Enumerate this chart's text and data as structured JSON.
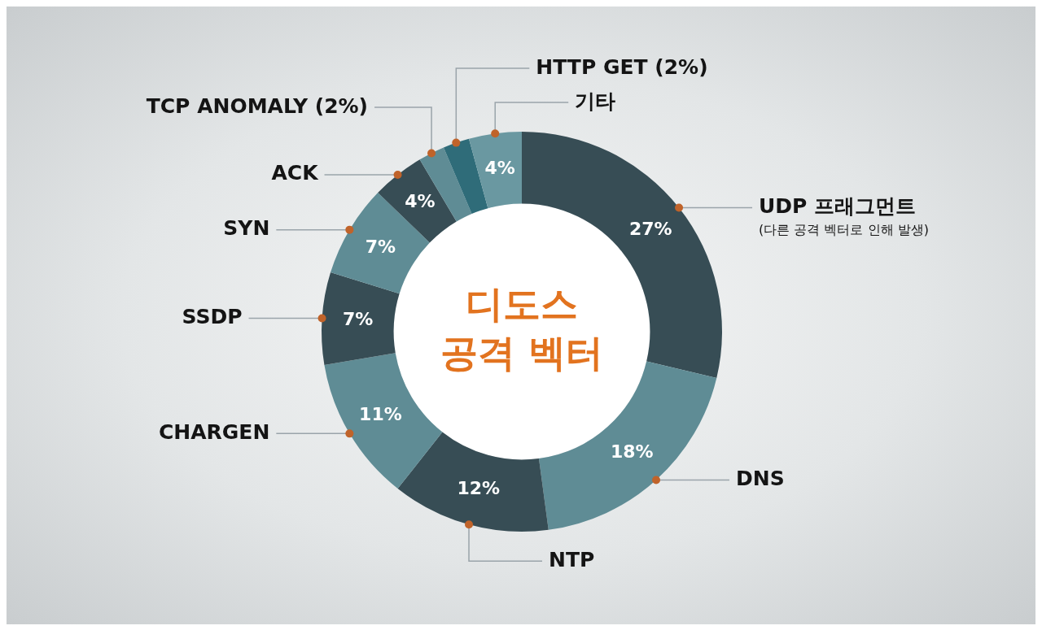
{
  "chart_data": {
    "type": "donut",
    "title": "디도스 공격 벡터",
    "categories": [
      "UDP 프래그먼트",
      "DNS",
      "NTP",
      "CHARGEN",
      "SSDP",
      "SYN",
      "ACK",
      "TCP ANOMALY (2%)",
      "HTTP GET (2%)",
      "기타"
    ],
    "values": [
      27,
      18,
      12,
      11,
      7,
      7,
      4,
      2,
      2,
      4
    ],
    "colors": [
      "#374d55",
      "#5f8c95",
      "#374d55",
      "#5f8c95",
      "#374d55",
      "#5f8c95",
      "#374d55",
      "#5f8c95",
      "#2f6c79",
      "#6a98a1"
    ],
    "value_labels": [
      "27%",
      "18%",
      "12%",
      "11%",
      "7%",
      "7%",
      "4%",
      null,
      null,
      "4%"
    ],
    "annotations": [
      "(다른 공격 벡터로 인해 발생)"
    ],
    "legend": false
  }
}
